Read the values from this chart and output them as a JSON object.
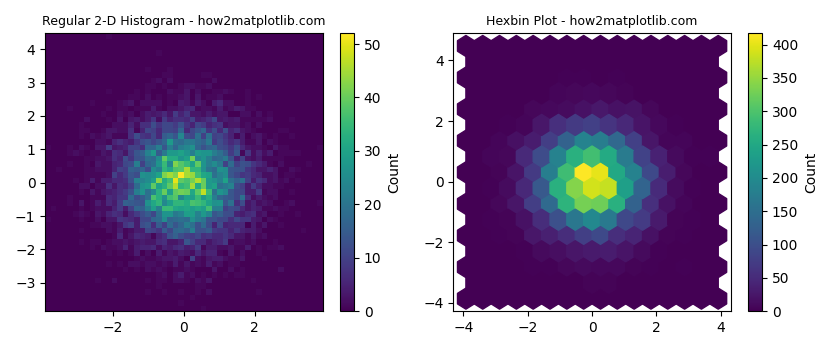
{
  "title1": "Regular 2-D Histogram - how2matplotlib.com",
  "title2": "Hexbin Plot - how2matplotlib.com",
  "colorbar_label": "Count",
  "cmap": "viridis",
  "seed": 42,
  "n_samples": 10000,
  "hist_bins": 50,
  "hexbin_gridsize": 15,
  "figsize": [
    8.4,
    3.5
  ],
  "dpi": 100,
  "title_fontsize": 9
}
